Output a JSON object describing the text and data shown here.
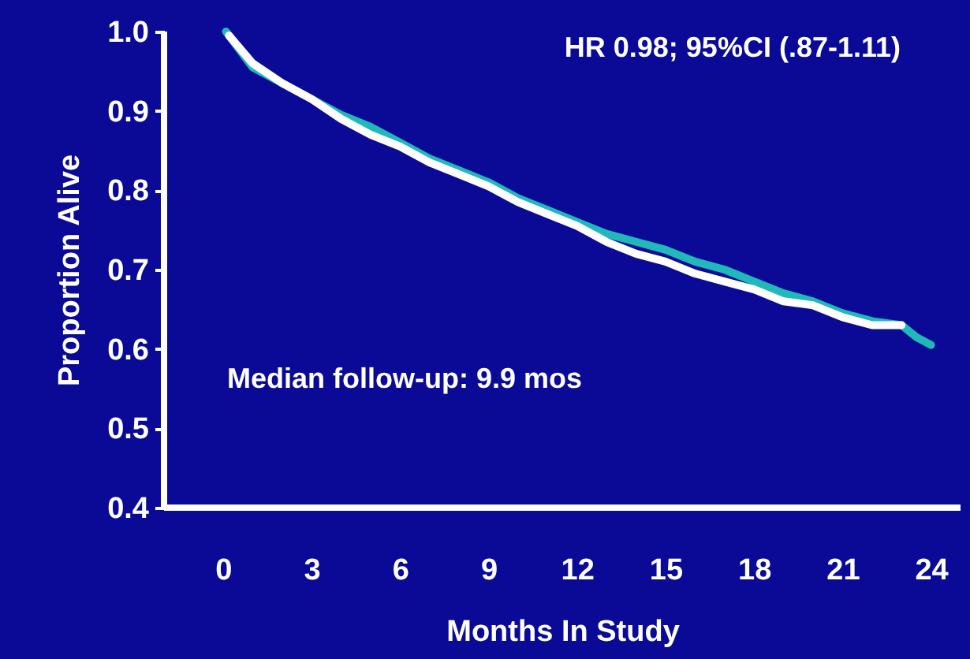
{
  "chart_data": {
    "type": "line",
    "xlabel": "Months In Study",
    "ylabel": "Proportion Alive",
    "annotations": [
      "HR 0.98; 95%CI (.87-1.11)",
      "Median follow-up: 9.9 mos"
    ],
    "xlim": [
      -2,
      25
    ],
    "xticks": [
      0,
      3,
      6,
      9,
      12,
      15,
      18,
      21,
      24
    ],
    "ylim": [
      0.4,
      1.0
    ],
    "yticks": [
      {
        "value": 0.4,
        "label": "0.4"
      },
      {
        "value": 0.5,
        "label": "0.5"
      },
      {
        "value": 0.6,
        "label": "0.6"
      },
      {
        "value": 0.7,
        "label": "0.7"
      },
      {
        "value": 0.8,
        "label": "0.8"
      },
      {
        "value": 0.9,
        "label": "0.9"
      },
      {
        "value": 1.0,
        "label": "1.0"
      }
    ],
    "grid": false,
    "legend": false,
    "marker": "none",
    "line_style": "solid",
    "series": [
      {
        "color": "#20b8b8",
        "x": [
          0.1,
          1,
          2,
          3,
          4,
          5,
          6,
          7,
          8,
          9,
          10,
          11,
          12,
          13,
          14,
          15,
          16,
          17,
          18,
          19,
          20,
          21,
          22,
          23,
          23.5,
          24
        ],
        "values": [
          1.0,
          0.955,
          0.935,
          0.915,
          0.895,
          0.88,
          0.86,
          0.84,
          0.825,
          0.81,
          0.79,
          0.775,
          0.76,
          0.745,
          0.735,
          0.725,
          0.71,
          0.7,
          0.685,
          0.67,
          0.66,
          0.645,
          0.635,
          0.63,
          0.615,
          0.605
        ]
      },
      {
        "color": "#ffffff",
        "x": [
          0.2,
          1,
          2,
          3,
          4,
          5,
          6,
          7,
          8,
          9,
          10,
          11,
          12,
          13,
          14,
          15,
          16,
          17,
          18,
          19,
          20,
          21,
          22,
          23
        ],
        "values": [
          0.995,
          0.96,
          0.935,
          0.915,
          0.89,
          0.87,
          0.855,
          0.835,
          0.82,
          0.805,
          0.785,
          0.77,
          0.755,
          0.735,
          0.72,
          0.71,
          0.695,
          0.685,
          0.675,
          0.66,
          0.655,
          0.64,
          0.63,
          0.63
        ]
      }
    ]
  }
}
